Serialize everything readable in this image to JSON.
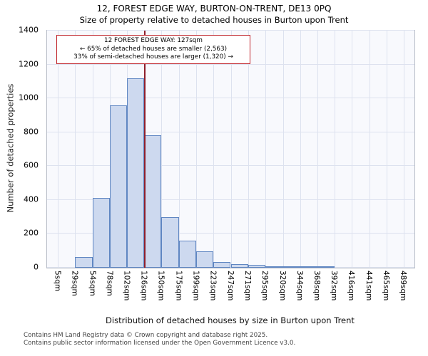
{
  "chart_data": {
    "type": "bar",
    "title": "12, FOREST EDGE WAY, BURTON-ON-TRENT, DE13 0PQ",
    "subtitle": "Size of property relative to detached houses in Burton upon Trent",
    "xlabel": "Distribution of detached houses by size in Burton upon Trent",
    "ylabel": "Number of detached properties",
    "categories": [
      "5sqm",
      "29sqm",
      "54sqm",
      "78sqm",
      "102sqm",
      "126sqm",
      "150sqm",
      "175sqm",
      "199sqm",
      "223sqm",
      "247sqm",
      "271sqm",
      "295sqm",
      "320sqm",
      "344sqm",
      "368sqm",
      "392sqm",
      "416sqm",
      "441sqm",
      "465sqm",
      "489sqm"
    ],
    "bin_edges": [
      5,
      29,
      54,
      78,
      102,
      126,
      150,
      175,
      199,
      223,
      247,
      271,
      295,
      320,
      344,
      368,
      392,
      416,
      441,
      465,
      489
    ],
    "values": [
      0,
      65,
      410,
      960,
      1120,
      780,
      300,
      160,
      95,
      35,
      20,
      15,
      10,
      8,
      5,
      3,
      0,
      0,
      0,
      0
    ],
    "yticks": [
      0,
      200,
      400,
      600,
      800,
      1000,
      1200,
      1400
    ],
    "ylim": [
      0,
      1400
    ],
    "xlim": [
      -10,
      504
    ],
    "grid": true,
    "legend": "none",
    "plot_bg": "#f8f9fd",
    "grid_color": "#dde2ef",
    "bar_fill": "#cdd9ef",
    "bar_border": "#5f86c2",
    "marker": {
      "value": 127,
      "color": "#8e1f2c"
    },
    "annotation": {
      "line1": "12 FOREST EDGE WAY: 127sqm",
      "line2": "← 65% of detached houses are smaller (2,563)",
      "line3": "33% of semi-detached houses are larger (1,320) →",
      "border_color": "#c02128"
    }
  },
  "footer": {
    "line1": "Contains HM Land Registry data © Crown copyright and database right 2025.",
    "line2": "Contains public sector information licensed under the Open Government Licence v3.0."
  }
}
